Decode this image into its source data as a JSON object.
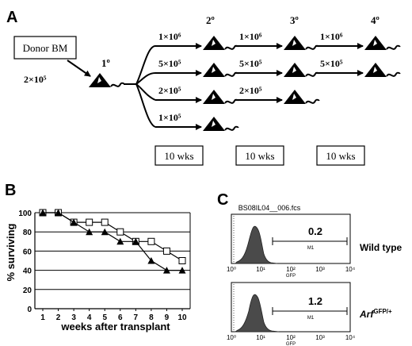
{
  "panel_a": {
    "letter": "A",
    "donor_label": "Donor BM",
    "initial_dose": "2×10⁵",
    "generations": [
      "1º",
      "2º",
      "3º",
      "4º"
    ],
    "secondary_doses": [
      "1×10⁶",
      "5×10⁵",
      "2×10⁵",
      "1×10⁵"
    ],
    "tertiary_doses": [
      "1×10⁶",
      "5×10⁵",
      "2×10⁵"
    ],
    "quaternary_doses": [
      "1×10⁶",
      "5×10⁵"
    ],
    "intervals": [
      "10 wks",
      "10 wks",
      "10 wks"
    ]
  },
  "panel_b": {
    "letter": "B",
    "chart_data": {
      "type": "line",
      "ylabel": "% surviving",
      "xlabel": "weeks after transplant",
      "x": [
        1,
        2,
        3,
        4,
        5,
        6,
        7,
        8,
        9,
        10
      ],
      "x_ticks": [
        "1",
        "2",
        "3",
        "4",
        "5",
        "6",
        "7",
        "8",
        "9",
        "10"
      ],
      "y_ticks": [
        "0",
        "20",
        "40",
        "60",
        "80",
        "100"
      ],
      "ylim": [
        0,
        100
      ],
      "grid": "horizontal",
      "series": [
        {
          "marker": "square-open",
          "values": [
            100,
            100,
            90,
            90,
            90,
            80,
            70,
            70,
            60,
            50
          ]
        },
        {
          "marker": "triangle-filled",
          "values": [
            100,
            100,
            90,
            80,
            80,
            70,
            70,
            50,
            40,
            40
          ]
        }
      ]
    }
  },
  "panel_c": {
    "letter": "C",
    "file_label": "BS08IL04__006.fcs",
    "x_ticks": [
      "10⁰",
      "10¹",
      "10²",
      "10³",
      "10⁴"
    ],
    "axis_label": "GFP",
    "histograms": [
      {
        "percent": "0.2",
        "gate": "M1",
        "genotype": "Wild type"
      },
      {
        "percent": "1.2",
        "gate": "M1",
        "genotype": "Arf",
        "genotype_sup": "GFP/+"
      }
    ]
  }
}
